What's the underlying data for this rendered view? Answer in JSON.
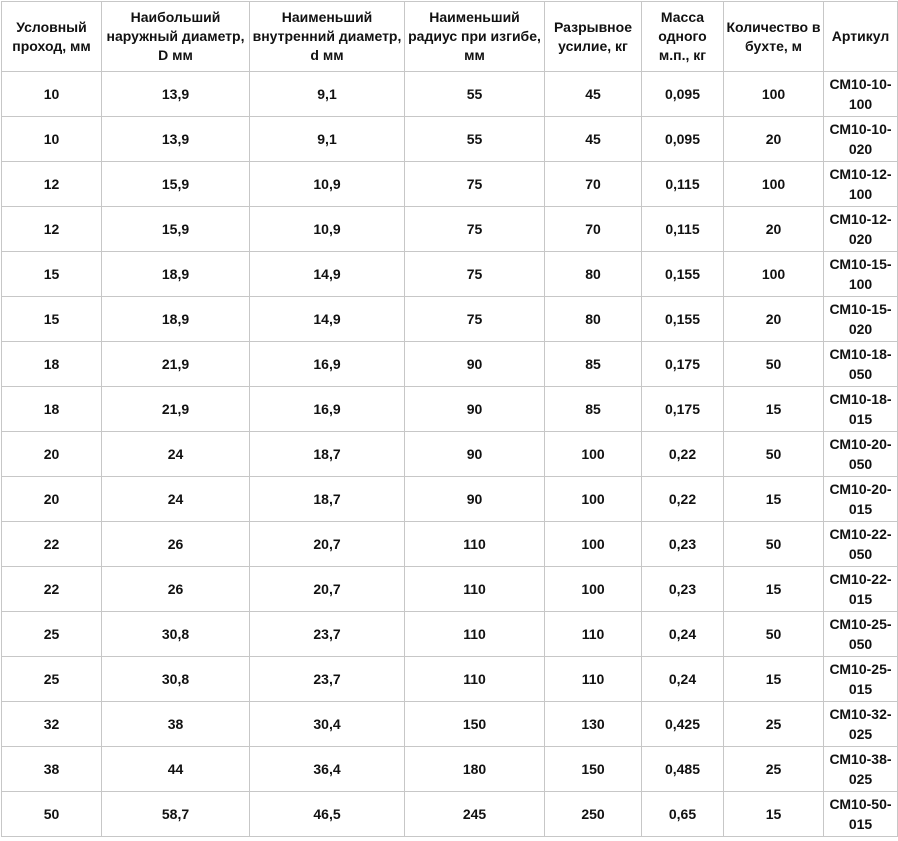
{
  "headers": [
    "Условный проход, мм",
    "Наибольший наружный диаметр, D мм",
    "Наименьший внутренний диаметр, d мм",
    "Наименьший радиус при изгибе, мм",
    "Разрывное усилие, кг",
    "Масса одного м.п., кг",
    "Количество в бухте, м",
    "Артикул"
  ],
  "rows": [
    [
      "10",
      "13,9",
      "9,1",
      "55",
      "45",
      "0,095",
      "100",
      "СМ10-10-100"
    ],
    [
      "10",
      "13,9",
      "9,1",
      "55",
      "45",
      "0,095",
      "20",
      "СМ10-10-020"
    ],
    [
      "12",
      "15,9",
      "10,9",
      "75",
      "70",
      "0,115",
      "100",
      "СМ10-12-100"
    ],
    [
      "12",
      "15,9",
      "10,9",
      "75",
      "70",
      "0,115",
      "20",
      "СМ10-12-020"
    ],
    [
      "15",
      "18,9",
      "14,9",
      "75",
      "80",
      "0,155",
      "100",
      "СМ10-15-100"
    ],
    [
      "15",
      "18,9",
      "14,9",
      "75",
      "80",
      "0,155",
      "20",
      "СМ10-15-020"
    ],
    [
      "18",
      "21,9",
      "16,9",
      "90",
      "85",
      "0,175",
      "50",
      "СМ10-18-050"
    ],
    [
      "18",
      "21,9",
      "16,9",
      "90",
      "85",
      "0,175",
      "15",
      "СМ10-18-015"
    ],
    [
      "20",
      "24",
      "18,7",
      "90",
      "100",
      "0,22",
      "50",
      "СМ10-20-050"
    ],
    [
      "20",
      "24",
      "18,7",
      "90",
      "100",
      "0,22",
      "15",
      "СМ10-20-015"
    ],
    [
      "22",
      "26",
      "20,7",
      "110",
      "100",
      "0,23",
      "50",
      "СМ10-22-050"
    ],
    [
      "22",
      "26",
      "20,7",
      "110",
      "100",
      "0,23",
      "15",
      "СМ10-22-015"
    ],
    [
      "25",
      "30,8",
      "23,7",
      "110",
      "110",
      "0,24",
      "50",
      "СМ10-25-050"
    ],
    [
      "25",
      "30,8",
      "23,7",
      "110",
      "110",
      "0,24",
      "15",
      "СМ10-25-015"
    ],
    [
      "32",
      "38",
      "30,4",
      "150",
      "130",
      "0,425",
      "25",
      "СМ10-32-025"
    ],
    [
      "38",
      "44",
      "36,4",
      "180",
      "150",
      "0,485",
      "25",
      "СМ10-38-025"
    ],
    [
      "50",
      "58,7",
      "46,5",
      "245",
      "250",
      "0,65",
      "15",
      "СМ10-50-015"
    ]
  ]
}
